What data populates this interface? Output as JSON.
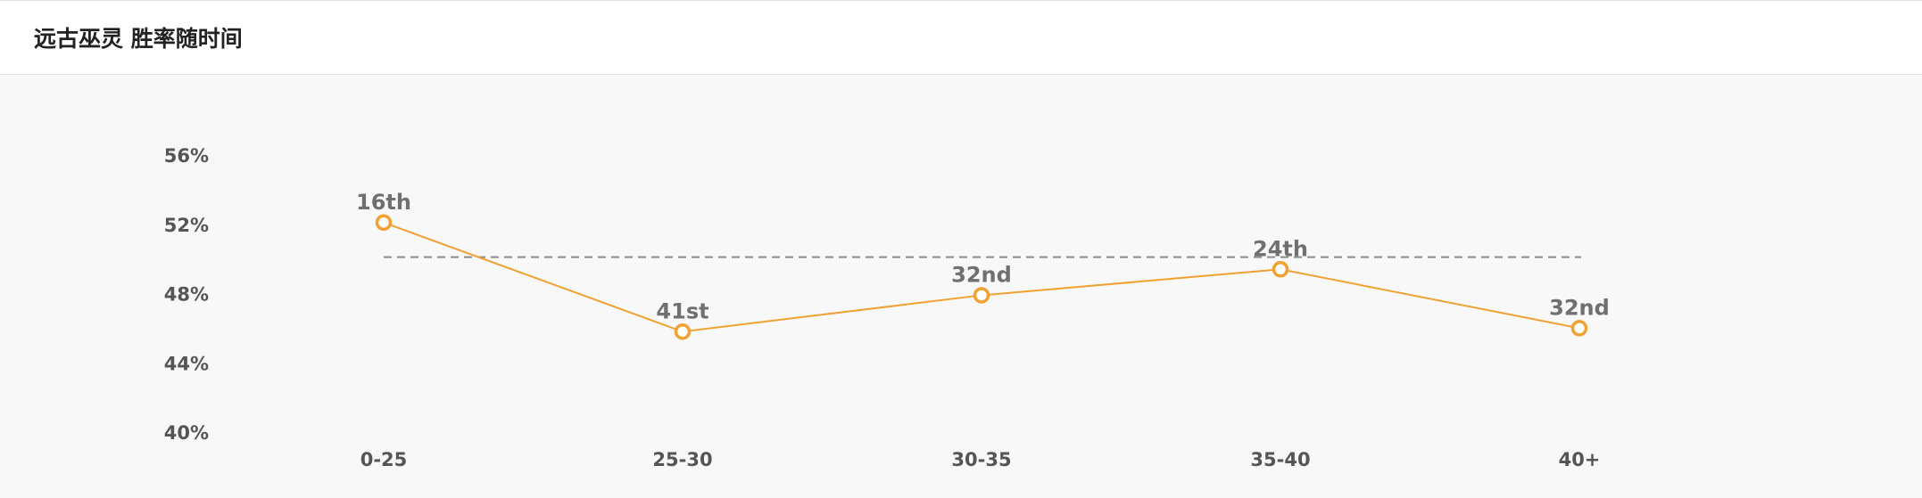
{
  "title": "远古巫灵 胜率随时间",
  "colors": {
    "line": "#f0a132",
    "marker_fill": "#ffffff",
    "average_line": "#8a8a8a",
    "tick_text": "#555555",
    "label_text": "#707070"
  },
  "chart_data": {
    "type": "line",
    "title": "远古巫灵 胜率随时间",
    "xlabel": "",
    "ylabel": "",
    "categories": [
      "0-25",
      "25-30",
      "30-35",
      "35-40",
      "40+"
    ],
    "values": [
      52.1,
      45.8,
      47.9,
      49.4,
      46.0
    ],
    "point_labels": [
      "16th",
      "41st",
      "32nd",
      "24th",
      "32nd"
    ],
    "y_ticks": [
      "40%",
      "44%",
      "48%",
      "52%",
      "56%"
    ],
    "ylim": [
      40,
      56
    ],
    "reference_line": {
      "value": 50.1,
      "style": "dashed"
    },
    "grid": false,
    "legend": "none"
  }
}
